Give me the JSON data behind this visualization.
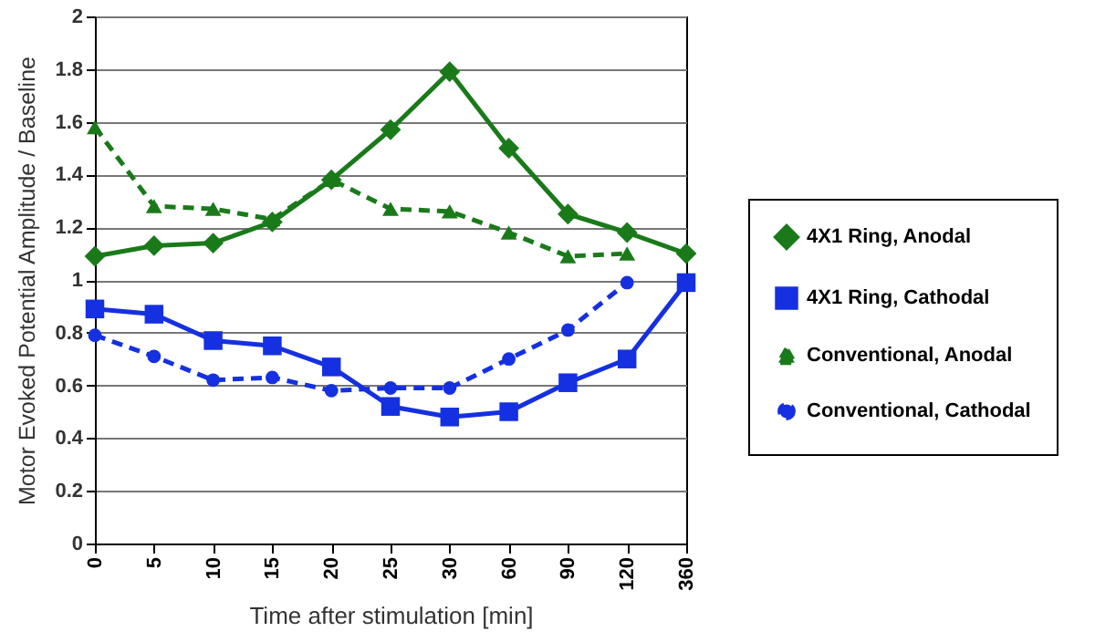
{
  "chart_data": {
    "type": "line",
    "xlabel": "Time after stimulation [min]",
    "ylabel": "Motor Evoked Potential Amplitude / Baseline",
    "categories": [
      "0",
      "5",
      "10",
      "15",
      "20",
      "25",
      "30",
      "60",
      "90",
      "120",
      "360"
    ],
    "ylim": [
      0,
      2
    ],
    "yticks": [
      0,
      0.2,
      0.4,
      0.6,
      0.8,
      1,
      1.2,
      1.4,
      1.6,
      1.8,
      2
    ],
    "grid": "y",
    "legend": "right",
    "series": [
      {
        "name": "4X1 Ring, Anodal",
        "color": "#1a7a1a",
        "marker": "diamond",
        "line_style": "solid",
        "values": [
          1.09,
          1.13,
          1.14,
          1.22,
          1.38,
          1.57,
          1.79,
          1.5,
          1.25,
          1.18,
          1.1
        ]
      },
      {
        "name": "4X1 Ring, Cathodal",
        "color": "#1530e0",
        "marker": "square",
        "line_style": "solid",
        "values": [
          0.89,
          0.87,
          0.77,
          0.75,
          0.67,
          0.52,
          0.48,
          0.5,
          0.61,
          0.7,
          0.99
        ]
      },
      {
        "name": "Conventional, Anodal",
        "color": "#1a7a1a",
        "marker": "triangle",
        "line_style": "dashed",
        "values": [
          1.58,
          1.28,
          1.27,
          1.23,
          1.38,
          1.27,
          1.26,
          1.18,
          1.09,
          1.1,
          null
        ]
      },
      {
        "name": "Conventional, Cathodal",
        "color": "#1530e0",
        "marker": "circle",
        "line_style": "dashed",
        "values": [
          0.79,
          0.71,
          0.62,
          0.63,
          0.58,
          0.59,
          0.59,
          0.7,
          0.81,
          0.99,
          null
        ]
      }
    ]
  }
}
